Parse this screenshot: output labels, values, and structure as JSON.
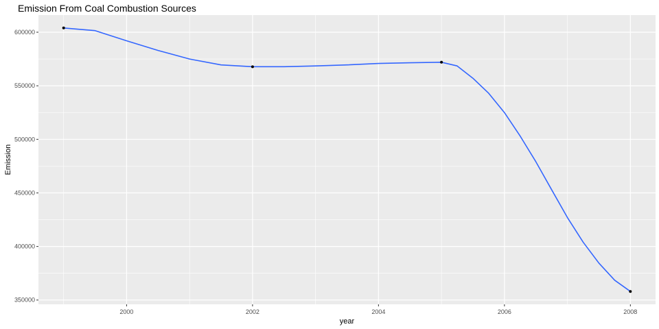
{
  "chart_data": {
    "type": "line",
    "title": "Emission From Coal Combustion Sources",
    "xlabel": "year",
    "ylabel": "Emission",
    "x": [
      1999,
      2002,
      2005,
      2008
    ],
    "series": [
      {
        "values": [
          604000,
          567800,
          572000,
          358000
        ]
      }
    ],
    "smooth_curve": [
      [
        1999,
        604000
      ],
      [
        1999.5,
        601500
      ],
      [
        2000,
        592000
      ],
      [
        2000.5,
        583000
      ],
      [
        2001,
        575000
      ],
      [
        2001.5,
        569500
      ],
      [
        2002,
        567800
      ],
      [
        2002.5,
        567800
      ],
      [
        2003,
        568500
      ],
      [
        2003.5,
        569500
      ],
      [
        2004,
        570800
      ],
      [
        2004.5,
        571500
      ],
      [
        2005,
        572000
      ],
      [
        2005.25,
        568500
      ],
      [
        2005.5,
        557000
      ],
      [
        2005.75,
        543000
      ],
      [
        2006,
        525000
      ],
      [
        2006.25,
        503000
      ],
      [
        2006.5,
        479000
      ],
      [
        2006.75,
        453000
      ],
      [
        2007,
        427000
      ],
      [
        2007.25,
        404000
      ],
      [
        2007.5,
        384500
      ],
      [
        2007.75,
        368500
      ],
      [
        2008,
        358000
      ]
    ],
    "xlim": [
      1998.6,
      2008.4
    ],
    "ylim": [
      346000,
      616000
    ],
    "x_ticks": [
      2000,
      2002,
      2004,
      2006,
      2008
    ],
    "y_ticks": [
      350000,
      400000,
      450000,
      500000,
      550000,
      600000
    ],
    "x_tick_labels": [
      "2000",
      "2002",
      "2004",
      "2006",
      "2008"
    ],
    "y_tick_labels": [
      "350000",
      "400000",
      "450000",
      "500000",
      "550000",
      "600000"
    ],
    "grid": true,
    "colors": {
      "panel": "#ebebeb",
      "grid": "#ffffff",
      "line": "#3366ff",
      "point": "#000000"
    }
  }
}
